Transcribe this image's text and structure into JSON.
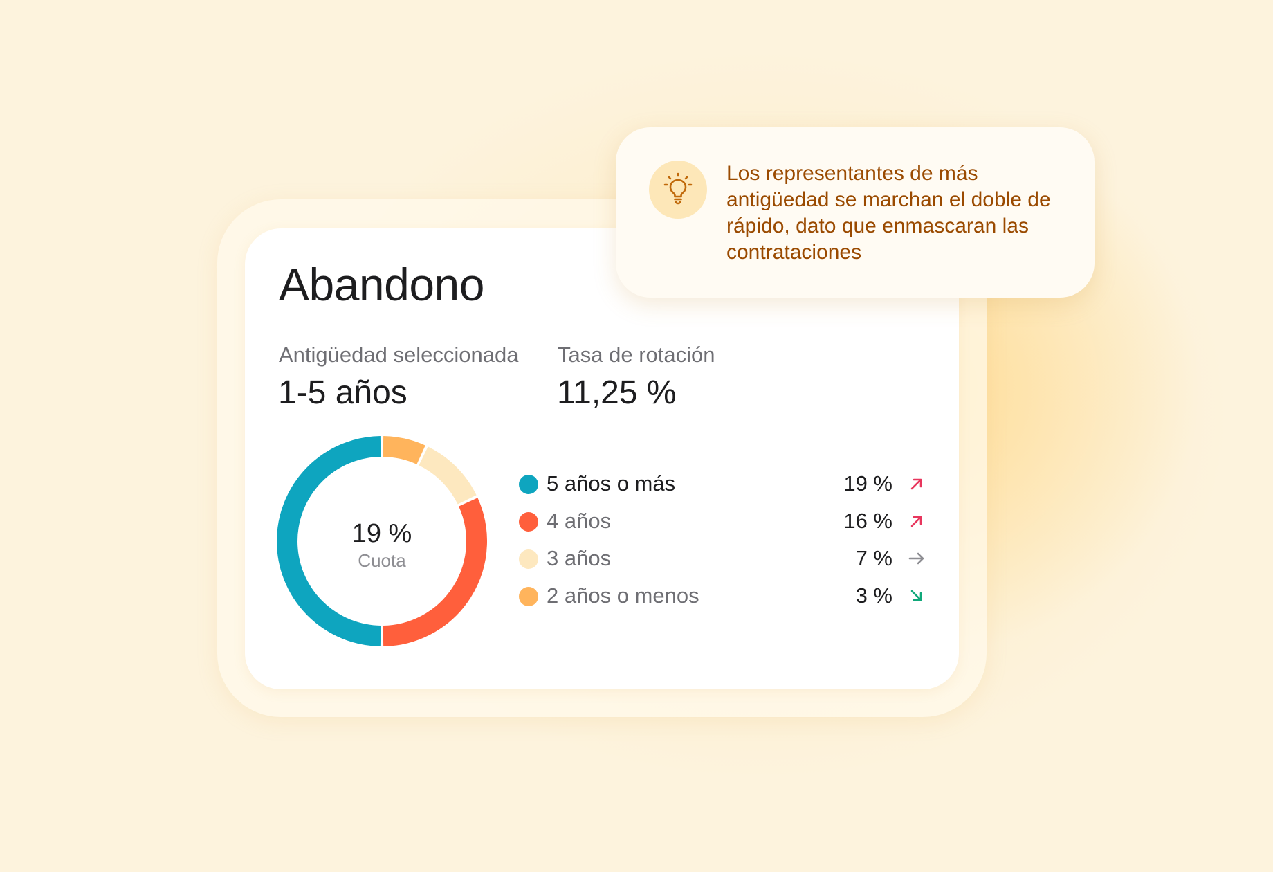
{
  "card": {
    "title": "Abandono",
    "stats": [
      {
        "label": "Antigüedad seleccionada",
        "value": "1-5 años"
      },
      {
        "label": "Tasa de rotación",
        "value": "11,25 %"
      }
    ],
    "donut": {
      "center_value": "19 %",
      "center_label": "Cuota"
    },
    "legend": [
      {
        "label": "5 años o más",
        "value": "19 %",
        "color": "#0ea5bf",
        "trend": "up-right-arrow-icon",
        "trend_color": "#e8365d",
        "active": true
      },
      {
        "label": "4 años",
        "value": "16 %",
        "color": "#ff5f3c",
        "trend": "up-right-arrow-icon",
        "trend_color": "#e8365d",
        "active": false
      },
      {
        "label": "3 años",
        "value": "7 %",
        "color": "#fde8bf",
        "trend": "right-arrow-icon",
        "trend_color": "#8e8e93",
        "active": false
      },
      {
        "label": "2 años o menos",
        "value": "3 %",
        "color": "#ffb45c",
        "trend": "down-right-arrow-icon",
        "trend_color": "#10a87a",
        "active": false
      }
    ]
  },
  "callout": {
    "icon": "lightbulb-icon",
    "text": "Los representantes de más antigüedad se marchan el doble de rápido, dato que enmascaran las contrataciones"
  },
  "colors": {
    "background": "#fdf3dd",
    "callout_text": "#9a4a00",
    "bulb_bg": "#fde7b8",
    "bulb_stroke": "#c0690a"
  },
  "chart_data": {
    "type": "pie",
    "categories": [
      "5 años o más",
      "4 años",
      "3 años",
      "2 años o menos"
    ],
    "values": [
      50,
      32,
      11,
      7
    ]
  }
}
